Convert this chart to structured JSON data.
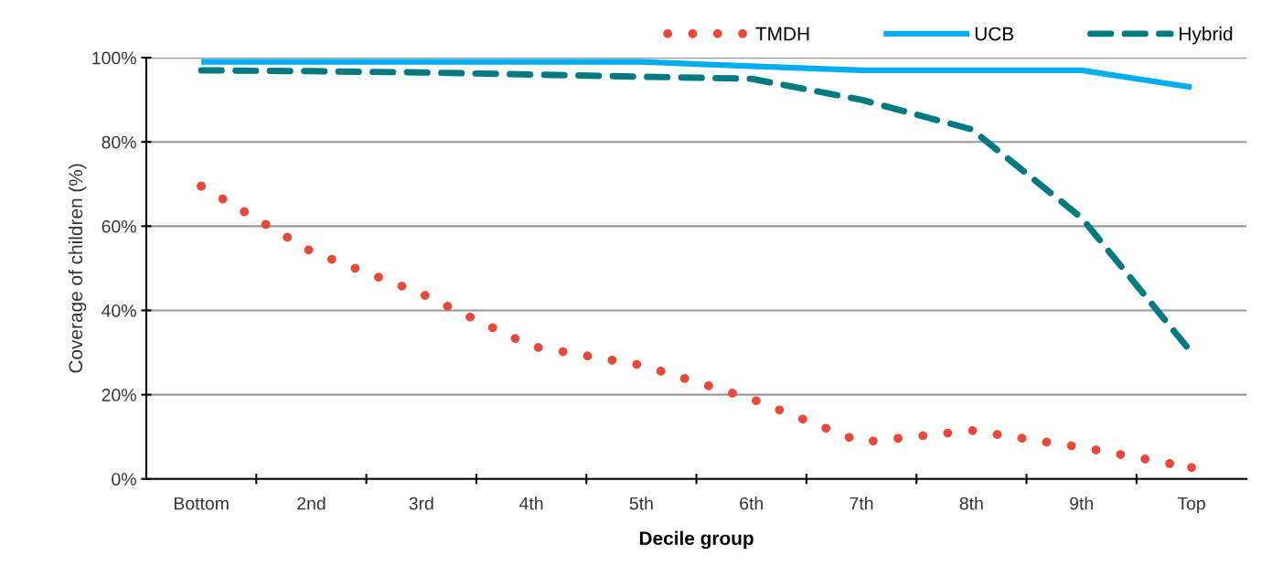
{
  "chart_data": {
    "type": "line",
    "xlabel": "Decile group",
    "ylabel": "Coverage of children (%)",
    "categories": [
      "Bottom",
      "2nd",
      "3rd",
      "4th",
      "5th",
      "6th",
      "7th",
      "8th",
      "9th",
      "Top"
    ],
    "series": [
      {
        "name": "TMDH",
        "color": "#e8483a",
        "line_style": "dotted",
        "values": [
          69.5,
          54,
          44,
          31.5,
          27,
          19,
          8.7,
          11.5,
          7.5,
          2.7
        ]
      },
      {
        "name": "UCB",
        "color": "#00aeef",
        "line_style": "solid",
        "values": [
          99,
          99,
          99,
          99,
          99,
          98,
          97,
          97,
          97,
          93
        ]
      },
      {
        "name": "Hybrid",
        "color": "#00797f",
        "line_style": "dashed",
        "values": [
          97,
          96.8,
          96.5,
          96,
          95.5,
          95,
          90,
          83,
          62,
          30
        ]
      }
    ],
    "ylim": [
      0,
      100
    ],
    "yticks": [
      {
        "value": 0,
        "label": "0%"
      },
      {
        "value": 20,
        "label": "20%"
      },
      {
        "value": 40,
        "label": "40%"
      },
      {
        "value": 60,
        "label": "60%"
      },
      {
        "value": 80,
        "label": "80%"
      },
      {
        "value": 100,
        "label": "100%"
      }
    ],
    "grid": "y",
    "legend": "top right",
    "marker": "none"
  }
}
